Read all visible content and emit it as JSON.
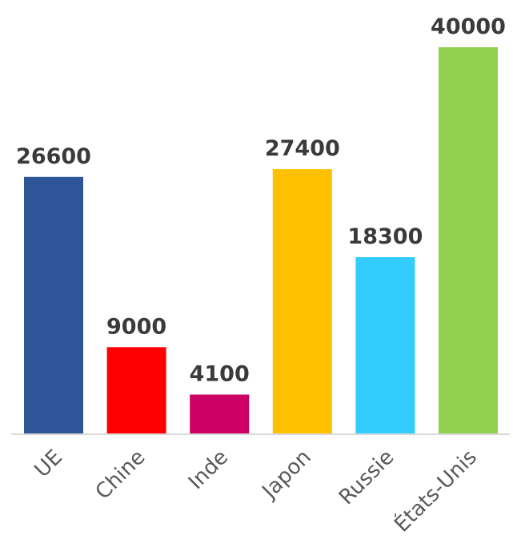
{
  "chart_data": {
    "type": "bar",
    "categories": [
      "UE",
      "Chine",
      "Inde",
      "Japon",
      "Russie",
      "États-Unis"
    ],
    "values": [
      26600,
      9000,
      4100,
      27400,
      18300,
      40000
    ],
    "colors": [
      "#2e5597",
      "#ff0000",
      "#cc0066",
      "#ffc000",
      "#33ccff",
      "#92d050"
    ],
    "value_labels": [
      "26600",
      "9000",
      "4100",
      "27400",
      "18300",
      "40000"
    ],
    "ylim": [
      0,
      40000
    ],
    "grid": false,
    "legend": "none",
    "axis_color": "#d9d9d9"
  }
}
